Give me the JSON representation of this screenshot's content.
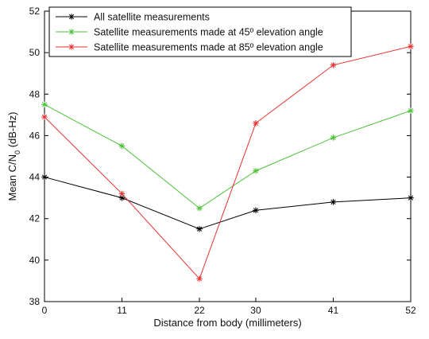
{
  "chart_data": {
    "type": "line",
    "title": "",
    "xlabel": "Distance from body (millimeters)",
    "ylabel": "Mean C/N",
    "ylabel_sub": "0",
    "ylabel_unit": " (dB-Hz)",
    "x": [
      0,
      11,
      22,
      30,
      41,
      52
    ],
    "x_tick_labels": [
      "0",
      "11",
      "22",
      "30",
      "41",
      "52"
    ],
    "ylim": [
      38,
      52
    ],
    "y_ticks": [
      38,
      40,
      42,
      44,
      46,
      48,
      50,
      52
    ],
    "grid": false,
    "legend_position": "top-left",
    "series": [
      {
        "name": "All satellite measurements",
        "color": "#000000",
        "marker": "asterisk",
        "values": [
          44.0,
          43.0,
          41.5,
          42.4,
          42.8,
          43.0
        ]
      },
      {
        "name": "Satellite measurements made at 45º elevation angle",
        "color": "#4dc23a",
        "marker": "asterisk",
        "values": [
          47.5,
          45.5,
          42.5,
          44.3,
          45.9,
          47.2
        ]
      },
      {
        "name": "Satellite measurements made at 85º elevation angle",
        "color": "#e8312f",
        "marker": "asterisk",
        "values": [
          46.9,
          43.2,
          39.1,
          46.6,
          49.4,
          50.3
        ]
      }
    ]
  }
}
